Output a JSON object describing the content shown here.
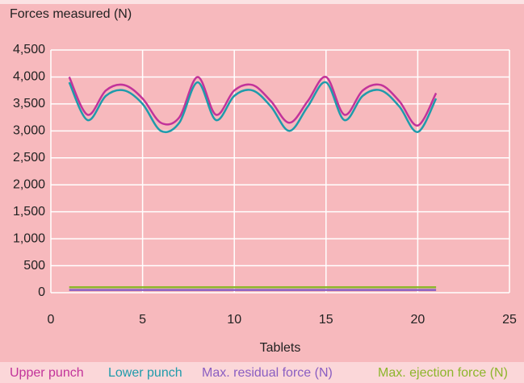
{
  "chart_data": {
    "type": "line",
    "y_label": "Forces measured (N)",
    "x_label": "Tablets",
    "xlim": [
      0,
      25
    ],
    "xticks": [
      0,
      5,
      10,
      15,
      20,
      25
    ],
    "ylim": [
      0,
      4500
    ],
    "yticks": [
      0,
      500,
      {
        "value": 1000,
        "label": "1,000"
      },
      {
        "value": 1500,
        "label": "1,500"
      },
      {
        "value": 2000,
        "label": "2,000"
      },
      {
        "value": 2500,
        "label": "2,500"
      },
      {
        "value": 3000,
        "label": "3,000"
      },
      {
        "value": 3500,
        "label": "3,500"
      },
      {
        "value": 4000,
        "label": "4,000"
      },
      {
        "value": 4500,
        "label": "4,500"
      }
    ],
    "grid": true,
    "x": [
      1,
      2,
      3,
      4,
      5,
      6,
      7,
      8,
      9,
      10,
      11,
      12,
      13,
      14,
      15,
      16,
      17,
      18,
      19,
      20,
      21
    ],
    "series": [
      {
        "name": "Upper punch",
        "color": "#c2339a",
        "values": [
          4000,
          3300,
          3750,
          3850,
          3600,
          3150,
          3250,
          4000,
          3300,
          3750,
          3850,
          3550,
          3150,
          3550,
          4000,
          3300,
          3750,
          3850,
          3550,
          3100,
          3700
        ]
      },
      {
        "name": "Lower punch",
        "color": "#1f9bab",
        "values": [
          3900,
          3200,
          3650,
          3750,
          3500,
          3000,
          3150,
          3900,
          3200,
          3650,
          3750,
          3450,
          3000,
          3450,
          3900,
          3200,
          3650,
          3750,
          3450,
          2980,
          3600
        ]
      },
      {
        "name": "Max. residual force (N)",
        "color": "#8a5ec2",
        "values": [
          50,
          50,
          50,
          50,
          50,
          50,
          50,
          50,
          50,
          50,
          50,
          50,
          50,
          50,
          50,
          50,
          50,
          50,
          50,
          50,
          50
        ]
      },
      {
        "name": "Max. ejection force (N)",
        "color": "#8db62c",
        "values": [
          100,
          100,
          100,
          100,
          100,
          100,
          100,
          100,
          100,
          100,
          100,
          100,
          100,
          100,
          100,
          100,
          100,
          100,
          100,
          100,
          100
        ]
      }
    ]
  }
}
